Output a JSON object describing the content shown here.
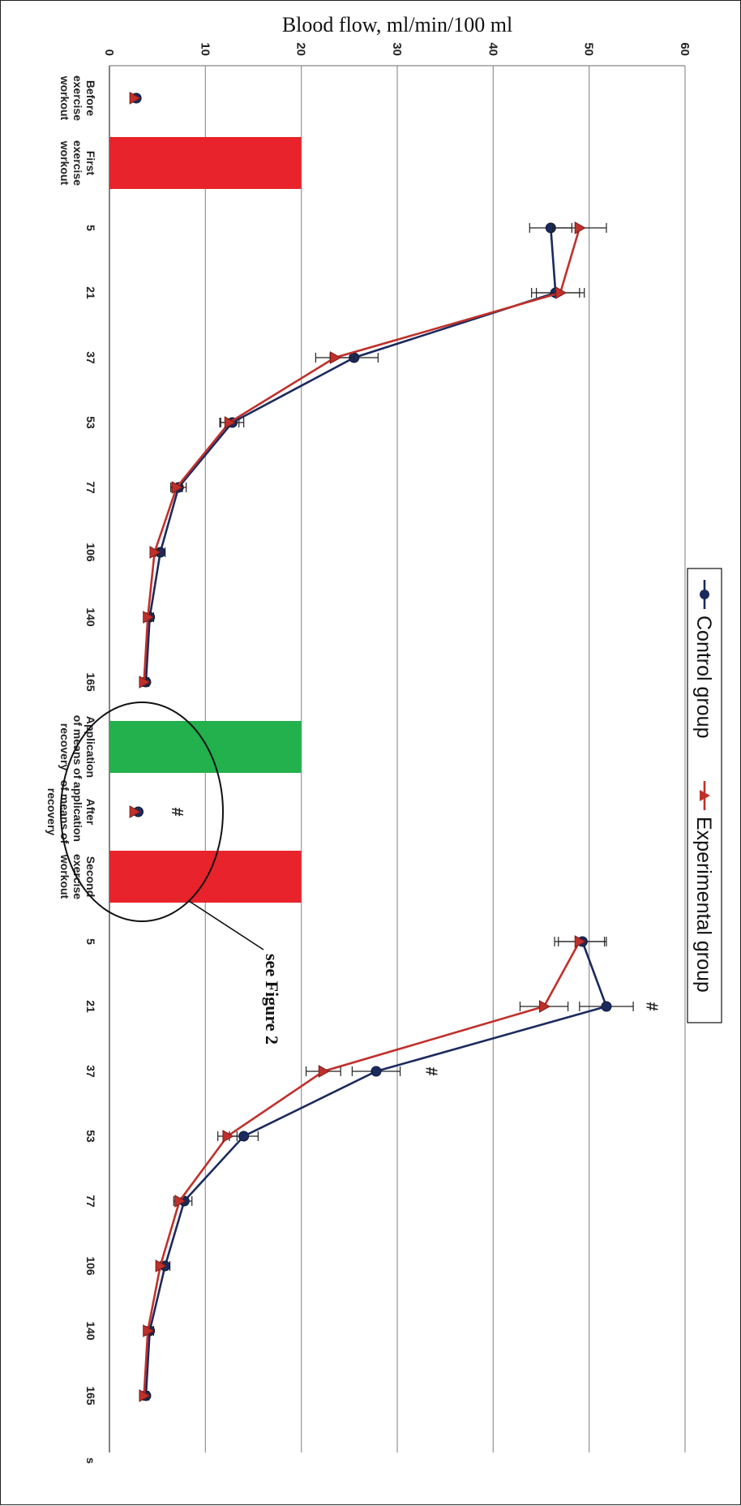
{
  "chart_data": {
    "type": "line",
    "ylabel": "Blood flow, ml/min/100 ml",
    "ylim": [
      0,
      60
    ],
    "yticks": [
      0,
      10,
      20,
      30,
      40,
      50,
      60
    ],
    "grid": true,
    "legend_position": "top-center",
    "categories": [
      "Before exercise workout",
      "First exercise workout",
      "5",
      "21",
      "37",
      "53",
      "77",
      "106",
      "140",
      "165",
      "Application of means of recovery",
      "After application of means of recovery",
      "Second exercise workout",
      "5",
      "21",
      "37",
      "53",
      "77",
      "106",
      "140",
      "165",
      "s"
    ],
    "series": [
      {
        "name": "Control group",
        "color": "#1b2a5e",
        "marker": "circle",
        "points": [
          {
            "x": "Before exercise workout",
            "y": 2.8,
            "err": null
          },
          {
            "x": "5",
            "y": 46.0,
            "err": 2.2,
            "segment": 1
          },
          {
            "x": "21",
            "y": 46.5,
            "err": 2.5,
            "segment": 1
          },
          {
            "x": "37",
            "y": 25.5,
            "err": 2.5,
            "segment": 1
          },
          {
            "x": "53",
            "y": 12.8,
            "err": 1.2,
            "segment": 1
          },
          {
            "x": "77",
            "y": 7.2,
            "err": 0.8,
            "segment": 1
          },
          {
            "x": "106",
            "y": 5.3,
            "err": 0.5,
            "segment": 1
          },
          {
            "x": "140",
            "y": 4.2,
            "err": 0.4,
            "segment": 1
          },
          {
            "x": "165",
            "y": 3.8,
            "err": 0.3,
            "segment": 1
          },
          {
            "x": "After application of means of recovery",
            "y": 3.0,
            "err": null
          },
          {
            "x": "5",
            "y": 49.3,
            "err": 2.5,
            "segment": 2
          },
          {
            "x": "21",
            "y": 51.8,
            "err": 2.8,
            "segment": 2
          },
          {
            "x": "37",
            "y": 27.8,
            "err": 2.5,
            "segment": 2
          },
          {
            "x": "53",
            "y": 14.0,
            "err": 1.5,
            "segment": 2
          },
          {
            "x": "77",
            "y": 7.8,
            "err": 0.8,
            "segment": 2
          },
          {
            "x": "106",
            "y": 5.8,
            "err": 0.5,
            "segment": 2
          },
          {
            "x": "140",
            "y": 4.2,
            "err": 0.4,
            "segment": 2
          },
          {
            "x": "165",
            "y": 3.8,
            "err": 0.3,
            "segment": 2
          }
        ]
      },
      {
        "name": "Experimental group",
        "color": "#c0302b",
        "marker": "triangle",
        "points": [
          {
            "x": "Before exercise workout",
            "y": 2.6,
            "err": null
          },
          {
            "x": "5",
            "y": 49.0,
            "err": 2.8,
            "segment": 1
          },
          {
            "x": "21",
            "y": 47.0,
            "err": 2.5,
            "segment": 1
          },
          {
            "x": "37",
            "y": 23.5,
            "err": 2.0,
            "segment": 1
          },
          {
            "x": "53",
            "y": 12.5,
            "err": 1.0,
            "segment": 1
          },
          {
            "x": "77",
            "y": 7.0,
            "err": 0.6,
            "segment": 1
          },
          {
            "x": "106",
            "y": 4.7,
            "err": 0.4,
            "segment": 1
          },
          {
            "x": "140",
            "y": 4.0,
            "err": 0.3,
            "segment": 1
          },
          {
            "x": "165",
            "y": 3.6,
            "err": 0.3,
            "segment": 1
          },
          {
            "x": "After application of means of recovery",
            "y": 2.6,
            "err": null
          },
          {
            "x": "5",
            "y": 49.0,
            "err": 2.6,
            "segment": 2
          },
          {
            "x": "21",
            "y": 45.3,
            "err": 2.5,
            "segment": 2
          },
          {
            "x": "37",
            "y": 22.3,
            "err": 1.8,
            "segment": 2
          },
          {
            "x": "53",
            "y": 12.3,
            "err": 1.0,
            "segment": 2
          },
          {
            "x": "77",
            "y": 7.3,
            "err": 0.6,
            "segment": 2
          },
          {
            "x": "106",
            "y": 5.3,
            "err": 0.4,
            "segment": 2
          },
          {
            "x": "140",
            "y": 4.0,
            "err": 0.3,
            "segment": 2
          },
          {
            "x": "165",
            "y": 3.6,
            "err": 0.3,
            "segment": 2
          }
        ]
      }
    ],
    "bars": [
      {
        "label": "First exercise workout",
        "value": 20,
        "color": "#e8232b"
      },
      {
        "label": "Application of means of recovery",
        "value": 20,
        "color": "#22b14c"
      },
      {
        "label": "Second exercise workout",
        "value": 20,
        "color": "#e8232b"
      }
    ],
    "annotations": [
      {
        "text": "#",
        "x": "After application of means of recovery"
      },
      {
        "text": "#",
        "x": "21"
      },
      {
        "text": "#",
        "x": "37"
      },
      {
        "text": "see Figure 2"
      }
    ]
  }
}
